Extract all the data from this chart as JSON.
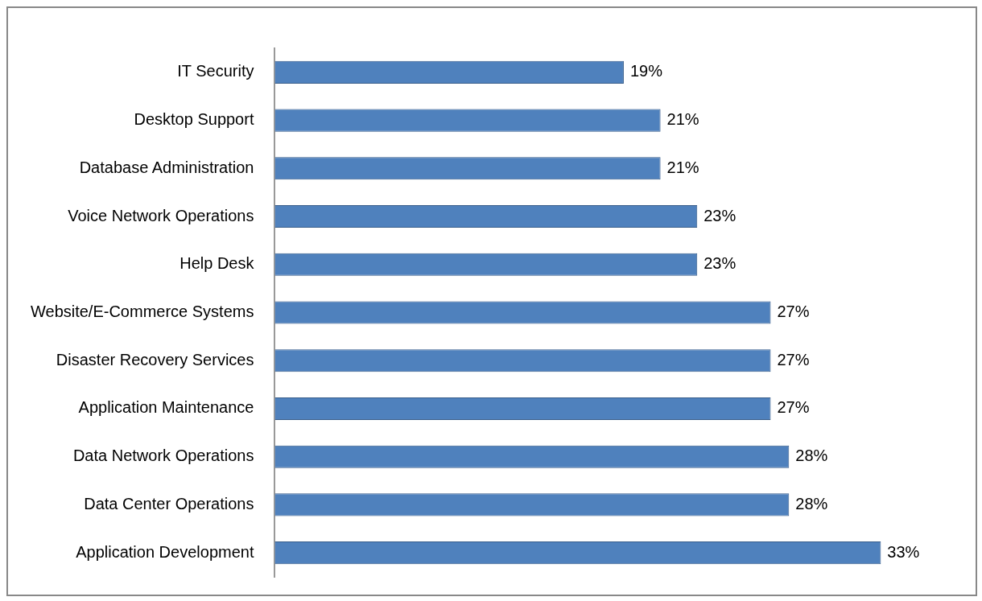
{
  "chart_data": {
    "type": "bar",
    "orientation": "horizontal",
    "categories": [
      "IT Security",
      "Desktop Support",
      "Database Administration",
      "Voice Network Operations",
      "Help Desk",
      "Website/E-Commerce Systems",
      "Disaster Recovery Services",
      "Application Maintenance",
      "Data Network Operations",
      "Data Center Operations",
      "Application Development"
    ],
    "values": [
      19,
      21,
      21,
      23,
      23,
      27,
      27,
      27,
      28,
      28,
      33
    ],
    "value_labels": [
      "19%",
      "21%",
      "21%",
      "23%",
      "23%",
      "27%",
      "27%",
      "27%",
      "28%",
      "28%",
      "33%"
    ],
    "color": "#4f81bd",
    "legend": false
  }
}
